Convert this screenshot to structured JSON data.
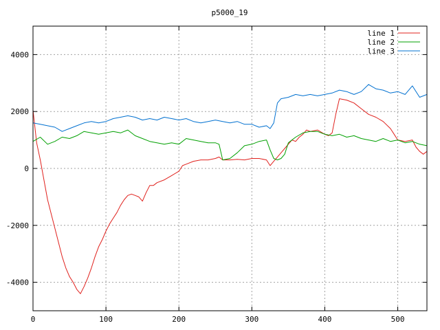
{
  "chart_data": {
    "type": "line",
    "title": "p5000_19",
    "xlabel": "",
    "ylabel": "",
    "xlim": [
      0,
      540
    ],
    "ylim": [
      -5000,
      5000
    ],
    "x_ticks": [
      0,
      100,
      200,
      300,
      400,
      500
    ],
    "y_ticks": [
      -4000,
      -2000,
      0,
      2000,
      4000
    ],
    "grid": true,
    "legend_position": "top-right",
    "series": [
      {
        "name": "line 1",
        "color": "#e0201c",
        "points": [
          [
            0,
            2050
          ],
          [
            5,
            900
          ],
          [
            10,
            300
          ],
          [
            15,
            -400
          ],
          [
            20,
            -1100
          ],
          [
            25,
            -1600
          ],
          [
            30,
            -2100
          ],
          [
            35,
            -2600
          ],
          [
            40,
            -3100
          ],
          [
            45,
            -3500
          ],
          [
            50,
            -3800
          ],
          [
            55,
            -4000
          ],
          [
            60,
            -4250
          ],
          [
            65,
            -4400
          ],
          [
            70,
            -4150
          ],
          [
            75,
            -3850
          ],
          [
            80,
            -3500
          ],
          [
            85,
            -3100
          ],
          [
            90,
            -2750
          ],
          [
            95,
            -2500
          ],
          [
            100,
            -2200
          ],
          [
            105,
            -1950
          ],
          [
            110,
            -1750
          ],
          [
            115,
            -1550
          ],
          [
            120,
            -1300
          ],
          [
            125,
            -1100
          ],
          [
            130,
            -950
          ],
          [
            135,
            -900
          ],
          [
            140,
            -950
          ],
          [
            145,
            -1000
          ],
          [
            150,
            -1150
          ],
          [
            155,
            -850
          ],
          [
            160,
            -600
          ],
          [
            165,
            -600
          ],
          [
            170,
            -500
          ],
          [
            180,
            -400
          ],
          [
            190,
            -250
          ],
          [
            200,
            -100
          ],
          [
            205,
            100
          ],
          [
            210,
            150
          ],
          [
            220,
            250
          ],
          [
            230,
            300
          ],
          [
            240,
            300
          ],
          [
            250,
            350
          ],
          [
            255,
            400
          ],
          [
            260,
            300
          ],
          [
            270,
            300
          ],
          [
            280,
            320
          ],
          [
            290,
            300
          ],
          [
            300,
            350
          ],
          [
            310,
            350
          ],
          [
            320,
            300
          ],
          [
            325,
            100
          ],
          [
            330,
            250
          ],
          [
            335,
            400
          ],
          [
            340,
            550
          ],
          [
            345,
            700
          ],
          [
            350,
            850
          ],
          [
            355,
            1000
          ],
          [
            360,
            950
          ],
          [
            365,
            1100
          ],
          [
            370,
            1200
          ],
          [
            375,
            1350
          ],
          [
            380,
            1300
          ],
          [
            390,
            1350
          ],
          [
            400,
            1200
          ],
          [
            405,
            1150
          ],
          [
            410,
            1250
          ],
          [
            415,
            1900
          ],
          [
            420,
            2450
          ],
          [
            430,
            2400
          ],
          [
            440,
            2300
          ],
          [
            450,
            2100
          ],
          [
            460,
            1900
          ],
          [
            470,
            1800
          ],
          [
            480,
            1650
          ],
          [
            490,
            1400
          ],
          [
            495,
            1200
          ],
          [
            500,
            1000
          ],
          [
            510,
            950
          ],
          [
            520,
            1000
          ],
          [
            525,
            750
          ],
          [
            530,
            600
          ],
          [
            535,
            500
          ],
          [
            540,
            600
          ]
        ]
      },
      {
        "name": "line 2",
        "color": "#00a000",
        "points": [
          [
            0,
            950
          ],
          [
            10,
            1100
          ],
          [
            20,
            850
          ],
          [
            30,
            950
          ],
          [
            40,
            1100
          ],
          [
            50,
            1050
          ],
          [
            60,
            1150
          ],
          [
            70,
            1300
          ],
          [
            80,
            1250
          ],
          [
            90,
            1200
          ],
          [
            100,
            1250
          ],
          [
            110,
            1300
          ],
          [
            120,
            1250
          ],
          [
            130,
            1350
          ],
          [
            140,
            1150
          ],
          [
            150,
            1050
          ],
          [
            160,
            950
          ],
          [
            170,
            900
          ],
          [
            180,
            850
          ],
          [
            190,
            900
          ],
          [
            200,
            850
          ],
          [
            210,
            1050
          ],
          [
            220,
            1000
          ],
          [
            230,
            950
          ],
          [
            240,
            900
          ],
          [
            250,
            900
          ],
          [
            255,
            850
          ],
          [
            260,
            300
          ],
          [
            270,
            350
          ],
          [
            280,
            550
          ],
          [
            290,
            800
          ],
          [
            300,
            850
          ],
          [
            310,
            950
          ],
          [
            320,
            1000
          ],
          [
            325,
            650
          ],
          [
            330,
            350
          ],
          [
            335,
            300
          ],
          [
            340,
            350
          ],
          [
            345,
            500
          ],
          [
            350,
            900
          ],
          [
            360,
            1100
          ],
          [
            370,
            1250
          ],
          [
            380,
            1300
          ],
          [
            390,
            1300
          ],
          [
            400,
            1200
          ],
          [
            410,
            1150
          ],
          [
            420,
            1200
          ],
          [
            430,
            1100
          ],
          [
            440,
            1150
          ],
          [
            450,
            1050
          ],
          [
            460,
            1000
          ],
          [
            470,
            950
          ],
          [
            480,
            1050
          ],
          [
            490,
            950
          ],
          [
            500,
            1000
          ],
          [
            510,
            900
          ],
          [
            520,
            950
          ],
          [
            530,
            850
          ],
          [
            540,
            800
          ]
        ]
      },
      {
        "name": "line 3",
        "color": "#0070d0",
        "points": [
          [
            0,
            1600
          ],
          [
            10,
            1550
          ],
          [
            20,
            1500
          ],
          [
            30,
            1450
          ],
          [
            40,
            1300
          ],
          [
            50,
            1400
          ],
          [
            60,
            1500
          ],
          [
            70,
            1600
          ],
          [
            80,
            1650
          ],
          [
            90,
            1600
          ],
          [
            100,
            1650
          ],
          [
            110,
            1750
          ],
          [
            120,
            1800
          ],
          [
            130,
            1850
          ],
          [
            140,
            1800
          ],
          [
            150,
            1700
          ],
          [
            160,
            1750
          ],
          [
            170,
            1700
          ],
          [
            180,
            1800
          ],
          [
            190,
            1750
          ],
          [
            200,
            1700
          ],
          [
            210,
            1750
          ],
          [
            220,
            1650
          ],
          [
            230,
            1600
          ],
          [
            240,
            1650
          ],
          [
            250,
            1700
          ],
          [
            260,
            1650
          ],
          [
            270,
            1600
          ],
          [
            280,
            1650
          ],
          [
            290,
            1550
          ],
          [
            300,
            1550
          ],
          [
            310,
            1450
          ],
          [
            320,
            1500
          ],
          [
            325,
            1400
          ],
          [
            330,
            1600
          ],
          [
            335,
            2300
          ],
          [
            340,
            2450
          ],
          [
            350,
            2500
          ],
          [
            360,
            2600
          ],
          [
            370,
            2550
          ],
          [
            380,
            2600
          ],
          [
            390,
            2550
          ],
          [
            400,
            2600
          ],
          [
            410,
            2650
          ],
          [
            420,
            2750
          ],
          [
            430,
            2700
          ],
          [
            440,
            2600
          ],
          [
            450,
            2700
          ],
          [
            460,
            2950
          ],
          [
            470,
            2800
          ],
          [
            480,
            2750
          ],
          [
            490,
            2650
          ],
          [
            500,
            2700
          ],
          [
            510,
            2600
          ],
          [
            520,
            2900
          ],
          [
            530,
            2500
          ],
          [
            540,
            2600
          ]
        ]
      }
    ]
  }
}
